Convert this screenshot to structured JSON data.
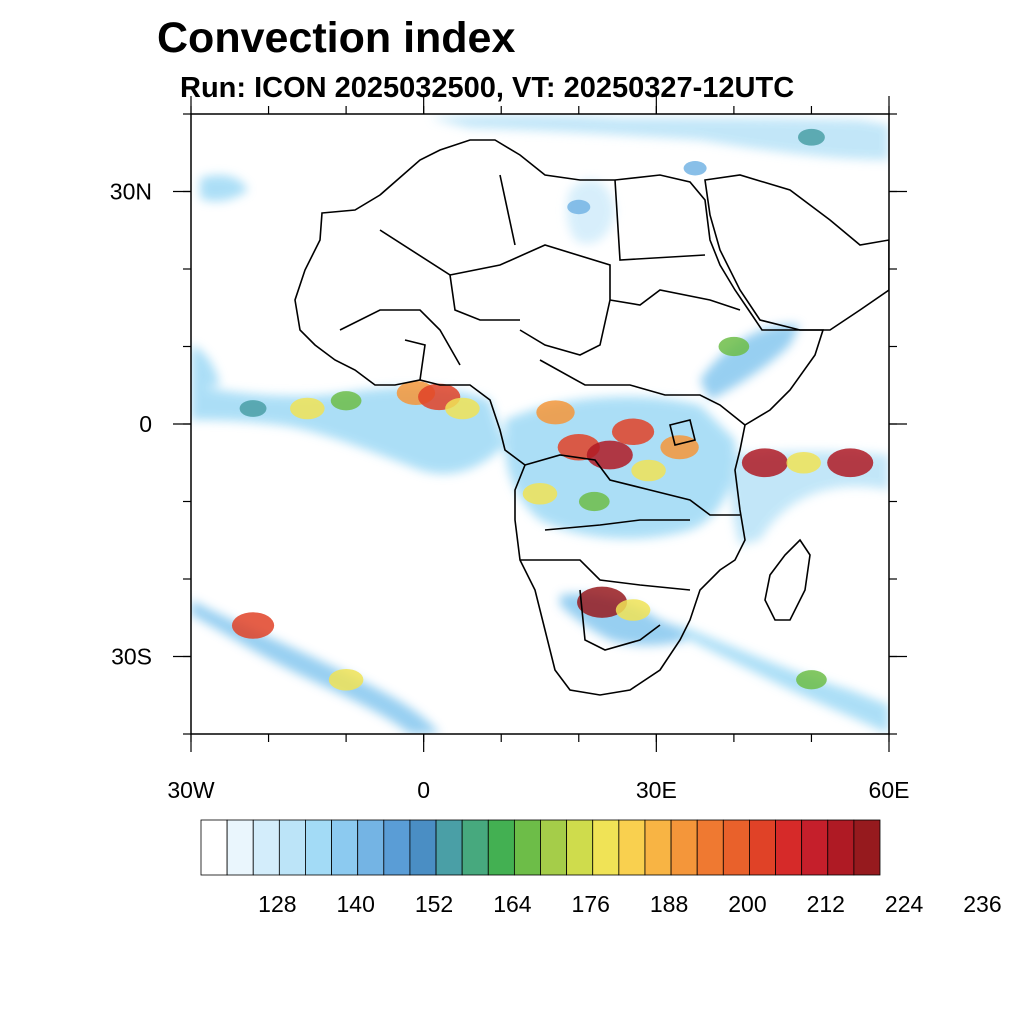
{
  "title": "Convection index",
  "subtitle": "Run: ICON 2025032500,  VT: 20250327-12UTC",
  "map": {
    "lon_range": [
      -30,
      60
    ],
    "lat_range": [
      -40,
      40
    ],
    "lon_ticks": [
      {
        "value": -30,
        "label": "30W"
      },
      {
        "value": 0,
        "label": "0"
      },
      {
        "value": 30,
        "label": "30E"
      },
      {
        "value": 60,
        "label": "60E"
      }
    ],
    "lat_ticks": [
      {
        "value": 30,
        "label": "30N"
      },
      {
        "value": 0,
        "label": "0"
      },
      {
        "value": -30,
        "label": "30S"
      }
    ],
    "land_color": "#ffffff",
    "border_color": "#000000"
  },
  "colorbar": {
    "colors": [
      "#ffffff",
      "#eaf6fd",
      "#d3edfb",
      "#bce4f8",
      "#a3dbf6",
      "#8ccaf0",
      "#74b4e4",
      "#5a9dd6",
      "#4a8ec4",
      "#4a9fa6",
      "#47a97e",
      "#43b052",
      "#6dbd48",
      "#a5cd49",
      "#cfdc4c",
      "#f0e356",
      "#f9d04f",
      "#f8b444",
      "#f4963a",
      "#ef7931",
      "#e9612b",
      "#e04227",
      "#d62a29",
      "#c51f2b",
      "#af1a24",
      "#961a1e"
    ],
    "tick_labels": [
      "128",
      "140",
      "152",
      "164",
      "176",
      "188",
      "200",
      "212",
      "224",
      "236"
    ]
  },
  "cells": [
    {
      "lon": -1,
      "lat": 4,
      "value": 188
    },
    {
      "lon": 2,
      "lat": 3.5,
      "value": 200
    },
    {
      "lon": 5,
      "lat": 2,
      "value": 176
    },
    {
      "lon": -10,
      "lat": 3,
      "value": 164
    },
    {
      "lon": -15,
      "lat": 2,
      "value": 176
    },
    {
      "lon": -22,
      "lat": 2,
      "value": 152
    },
    {
      "lon": 17,
      "lat": 1.5,
      "value": 188
    },
    {
      "lon": 20,
      "lat": -3,
      "value": 200
    },
    {
      "lon": 24,
      "lat": -4,
      "value": 212
    },
    {
      "lon": 27,
      "lat": -1,
      "value": 200
    },
    {
      "lon": 29,
      "lat": -6,
      "value": 176
    },
    {
      "lon": 33,
      "lat": -3,
      "value": 188
    },
    {
      "lon": 15,
      "lat": -9,
      "value": 176
    },
    {
      "lon": 22,
      "lat": -10,
      "value": 164
    },
    {
      "lon": 40,
      "lat": 10,
      "value": 164
    },
    {
      "lon": 44,
      "lat": -5,
      "value": 212
    },
    {
      "lon": 55,
      "lat": -5,
      "value": 212
    },
    {
      "lon": 49,
      "lat": -5,
      "value": 176
    },
    {
      "lon": 23,
      "lat": -23,
      "value": 224
    },
    {
      "lon": 27,
      "lat": -24,
      "value": 176
    },
    {
      "lon": -22,
      "lat": -26,
      "value": 200
    },
    {
      "lon": -10,
      "lat": -33,
      "value": 176
    },
    {
      "lon": 50,
      "lat": -33,
      "value": 164
    },
    {
      "lon": 20,
      "lat": 28,
      "value": 140
    },
    {
      "lon": 35,
      "lat": 33,
      "value": 140
    },
    {
      "lon": 50,
      "lat": 37,
      "value": 152
    }
  ]
}
